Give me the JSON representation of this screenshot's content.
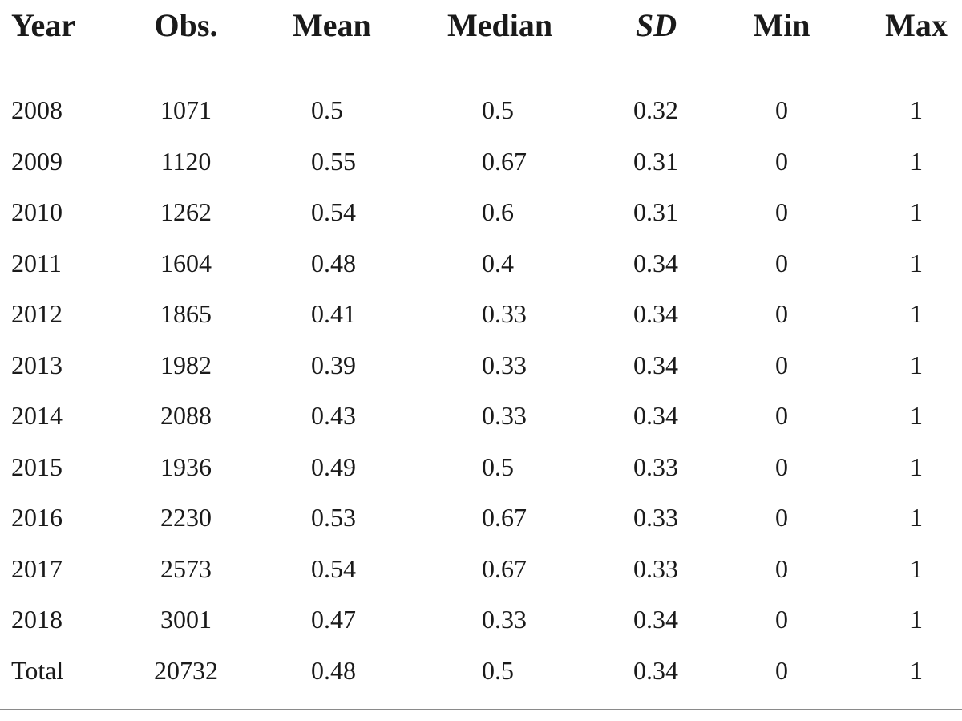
{
  "table": {
    "columns": [
      "Year",
      "Obs.",
      "Mean",
      "Median",
      "SD",
      "Min",
      "Max"
    ],
    "rows": [
      [
        "2008",
        "1071",
        "0.5",
        "0.5",
        "0.32",
        "0",
        "1"
      ],
      [
        "2009",
        "1120",
        "0.55",
        "0.67",
        "0.31",
        "0",
        "1"
      ],
      [
        "2010",
        "1262",
        "0.54",
        "0.6",
        "0.31",
        "0",
        "1"
      ],
      [
        "2011",
        "1604",
        "0.48",
        "0.4",
        "0.34",
        "0",
        "1"
      ],
      [
        "2012",
        "1865",
        "0.41",
        "0.33",
        "0.34",
        "0",
        "1"
      ],
      [
        "2013",
        "1982",
        "0.39",
        "0.33",
        "0.34",
        "0",
        "1"
      ],
      [
        "2014",
        "2088",
        "0.43",
        "0.33",
        "0.34",
        "0",
        "1"
      ],
      [
        "2015",
        "1936",
        "0.49",
        "0.5",
        "0.33",
        "0",
        "1"
      ],
      [
        "2016",
        "2230",
        "0.53",
        "0.67",
        "0.33",
        "0",
        "1"
      ],
      [
        "2017",
        "2573",
        "0.54",
        "0.67",
        "0.33",
        "0",
        "1"
      ],
      [
        "2018",
        "3001",
        "0.47",
        "0.33",
        "0.34",
        "0",
        "1"
      ],
      [
        "Total",
        "20732",
        "0.48",
        "0.5",
        "0.34",
        "0",
        "1"
      ]
    ]
  }
}
